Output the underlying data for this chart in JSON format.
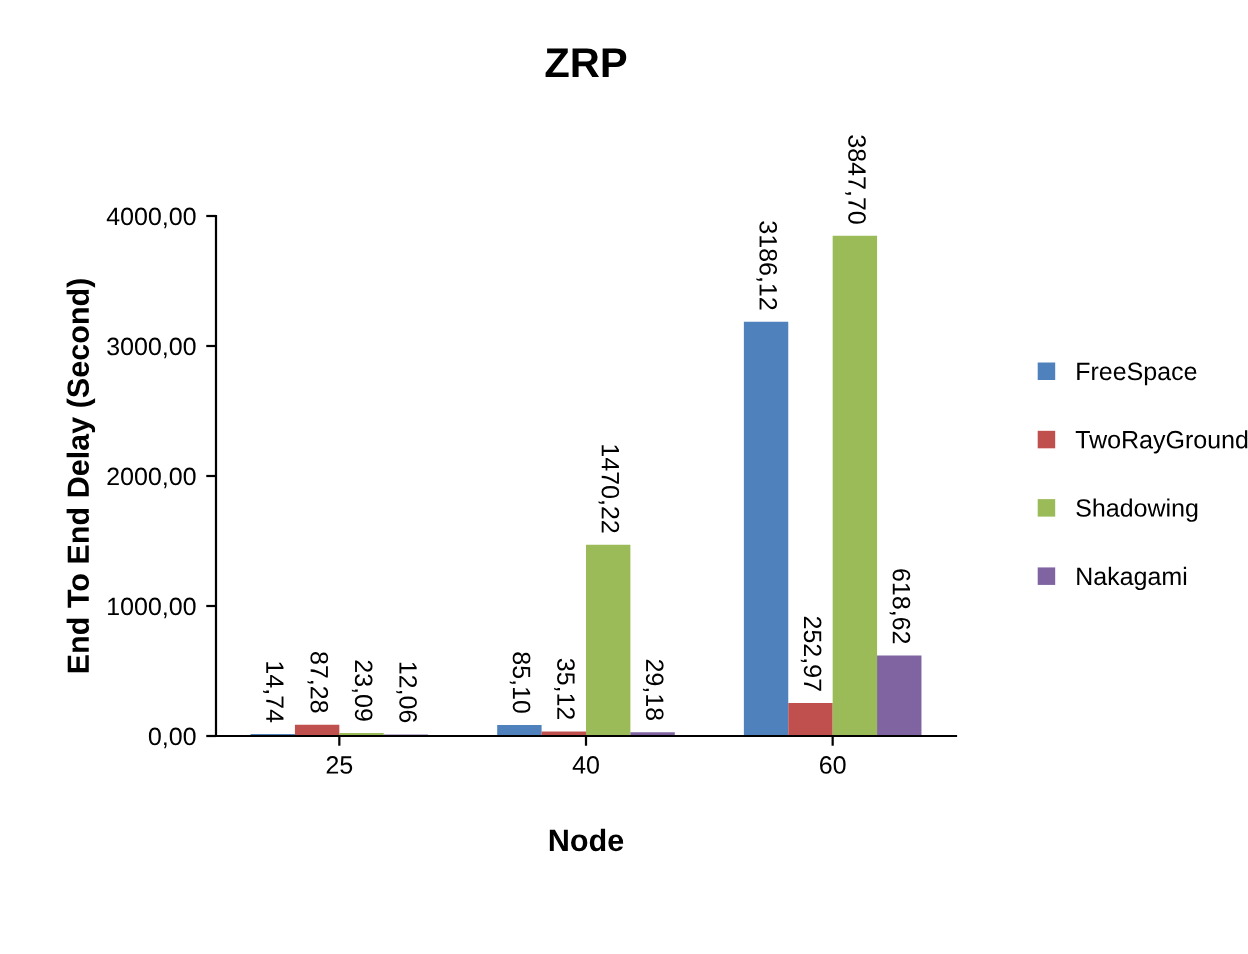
{
  "chart_data": {
    "type": "bar",
    "title": "ZRP",
    "xlabel": "Node",
    "ylabel": "End To End Delay (Second)",
    "categories": [
      "25",
      "40",
      "60"
    ],
    "series": [
      {
        "name": "FreeSpace",
        "color": "#4f81bd",
        "values": [
          14.74,
          85.1,
          3186.12
        ],
        "value_labels": [
          "14,74",
          "85,10",
          "3186,12"
        ]
      },
      {
        "name": "TwoRayGround",
        "color": "#c0504d",
        "values": [
          87.28,
          35.12,
          252.97
        ],
        "value_labels": [
          "87,28",
          "35,12",
          "252,97"
        ]
      },
      {
        "name": "Shadowing",
        "color": "#9bbb59",
        "values": [
          23.09,
          1470.22,
          3847.7
        ],
        "value_labels": [
          "23,09",
          "1470,22",
          "3847,70"
        ]
      },
      {
        "name": "Nakagami",
        "color": "#8064a2",
        "values": [
          12.06,
          29.18,
          618.62
        ],
        "value_labels": [
          "12,06",
          "29,18",
          "618,62"
        ]
      }
    ],
    "ylim": [
      0,
      4000
    ],
    "yticks": [
      {
        "value": 0,
        "label": "0,00"
      },
      {
        "value": 1000,
        "label": "1000,00"
      },
      {
        "value": 2000,
        "label": "2000,00"
      },
      {
        "value": 3000,
        "label": "3000,00"
      },
      {
        "value": 4000,
        "label": "4000,00"
      }
    ],
    "grid": false,
    "legend": "right"
  }
}
